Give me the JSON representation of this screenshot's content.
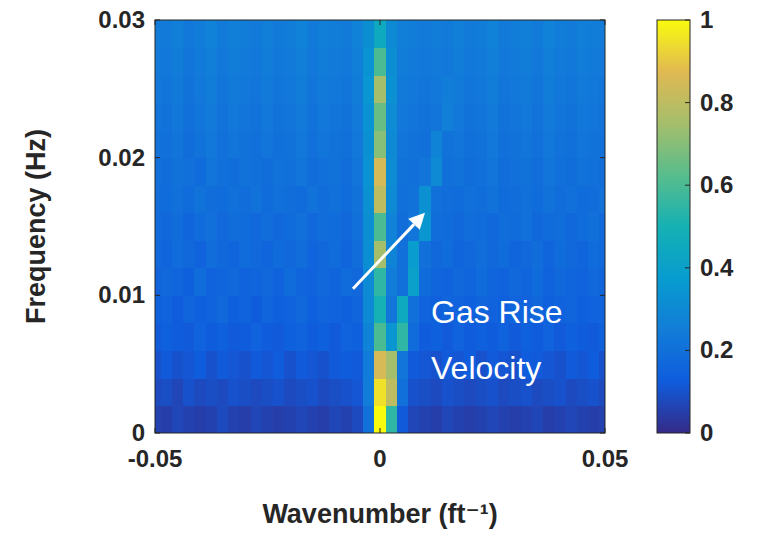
{
  "chart_data": {
    "type": "heatmap",
    "xlabel": "Wavenumber (ft⁻¹)",
    "ylabel": "Frequency (Hz)",
    "xlim": [
      -0.05,
      0.05
    ],
    "xticks": [
      -0.05,
      0,
      0.05
    ],
    "ylim": [
      0,
      0.03
    ],
    "yticks": [
      0,
      0.01,
      0.02,
      0.03
    ],
    "colorbar": {
      "range": [
        0,
        1
      ],
      "ticks": [
        0,
        0.2,
        0.4,
        0.6,
        0.8,
        1
      ]
    },
    "annotations": [
      {
        "text": "Gas Rise Velocity",
        "x": 0.01,
        "y": 0.016
      }
    ],
    "x": [
      -0.05,
      -0.0475,
      -0.045,
      -0.0425,
      -0.04,
      -0.0375,
      -0.035,
      -0.0325,
      -0.03,
      -0.0275,
      -0.025,
      -0.0225,
      -0.02,
      -0.0175,
      -0.015,
      -0.0125,
      -0.01,
      -0.0075,
      -0.005,
      -0.0025,
      0,
      0.0025,
      0.005,
      0.0075,
      0.01,
      0.0125,
      0.015,
      0.0175,
      0.02,
      0.0225,
      0.025,
      0.0275,
      0.03,
      0.0325,
      0.035,
      0.0375,
      0.04,
      0.0425,
      0.045,
      0.0475,
      0.05
    ],
    "y": [
      0.001,
      0.003,
      0.005,
      0.007,
      0.009,
      0.011,
      0.013,
      0.015,
      0.017,
      0.019,
      0.021,
      0.023,
      0.025,
      0.027,
      0.029
    ],
    "cells": [
      [
        0.06,
        0.05,
        0.07,
        0.06,
        0.05,
        0.06,
        0.08,
        0.06,
        0.05,
        0.07,
        0.06,
        0.05,
        0.06,
        0.07,
        0.06,
        0.05,
        0.07,
        0.06,
        0.08,
        0.2,
        1.0,
        0.55,
        0.12,
        0.07,
        0.06,
        0.05,
        0.07,
        0.06,
        0.05,
        0.06,
        0.07,
        0.06,
        0.05,
        0.06,
        0.07,
        0.05,
        0.06,
        0.07,
        0.06,
        0.05,
        0.06
      ],
      [
        0.08,
        0.09,
        0.07,
        0.1,
        0.08,
        0.09,
        0.08,
        0.1,
        0.09,
        0.08,
        0.09,
        0.1,
        0.08,
        0.09,
        0.1,
        0.08,
        0.09,
        0.1,
        0.11,
        0.25,
        0.95,
        0.8,
        0.2,
        0.1,
        0.09,
        0.08,
        0.1,
        0.09,
        0.08,
        0.09,
        0.1,
        0.08,
        0.09,
        0.1,
        0.08,
        0.09,
        0.1,
        0.08,
        0.09,
        0.1,
        0.08
      ],
      [
        0.1,
        0.12,
        0.1,
        0.11,
        0.13,
        0.1,
        0.12,
        0.11,
        0.1,
        0.12,
        0.11,
        0.13,
        0.1,
        0.12,
        0.11,
        0.1,
        0.12,
        0.13,
        0.12,
        0.25,
        0.85,
        0.75,
        0.22,
        0.12,
        0.11,
        0.1,
        0.12,
        0.11,
        0.13,
        0.1,
        0.12,
        0.11,
        0.1,
        0.13,
        0.12,
        0.11,
        0.1,
        0.12,
        0.11,
        0.13,
        0.1
      ],
      [
        0.12,
        0.14,
        0.13,
        0.12,
        0.15,
        0.13,
        0.14,
        0.12,
        0.13,
        0.15,
        0.13,
        0.12,
        0.14,
        0.15,
        0.13,
        0.14,
        0.12,
        0.15,
        0.14,
        0.28,
        0.6,
        0.35,
        0.55,
        0.18,
        0.13,
        0.14,
        0.12,
        0.15,
        0.13,
        0.14,
        0.13,
        0.15,
        0.12,
        0.14,
        0.13,
        0.15,
        0.12,
        0.14,
        0.13,
        0.12,
        0.14
      ],
      [
        0.14,
        0.15,
        0.13,
        0.16,
        0.14,
        0.15,
        0.17,
        0.14,
        0.15,
        0.13,
        0.16,
        0.14,
        0.15,
        0.17,
        0.14,
        0.16,
        0.15,
        0.14,
        0.16,
        0.3,
        0.5,
        0.22,
        0.45,
        0.2,
        0.15,
        0.14,
        0.16,
        0.15,
        0.14,
        0.16,
        0.15,
        0.14,
        0.16,
        0.15,
        0.17,
        0.14,
        0.15,
        0.16,
        0.14,
        0.15,
        0.16
      ],
      [
        0.15,
        0.17,
        0.16,
        0.14,
        0.18,
        0.15,
        0.16,
        0.17,
        0.15,
        0.16,
        0.17,
        0.15,
        0.18,
        0.16,
        0.15,
        0.17,
        0.16,
        0.18,
        0.17,
        0.3,
        0.55,
        0.25,
        0.2,
        0.4,
        0.18,
        0.16,
        0.15,
        0.17,
        0.16,
        0.18,
        0.16,
        0.15,
        0.17,
        0.16,
        0.18,
        0.15,
        0.17,
        0.16,
        0.15,
        0.17,
        0.16
      ],
      [
        0.17,
        0.16,
        0.18,
        0.17,
        0.15,
        0.19,
        0.17,
        0.16,
        0.18,
        0.17,
        0.16,
        0.18,
        0.17,
        0.19,
        0.16,
        0.17,
        0.18,
        0.16,
        0.19,
        0.32,
        0.75,
        0.28,
        0.2,
        0.38,
        0.2,
        0.17,
        0.18,
        0.16,
        0.17,
        0.19,
        0.17,
        0.18,
        0.16,
        0.17,
        0.19,
        0.16,
        0.18,
        0.17,
        0.16,
        0.18,
        0.17
      ],
      [
        0.18,
        0.17,
        0.19,
        0.16,
        0.18,
        0.2,
        0.17,
        0.19,
        0.18,
        0.17,
        0.19,
        0.17,
        0.18,
        0.2,
        0.17,
        0.19,
        0.18,
        0.17,
        0.2,
        0.32,
        0.6,
        0.27,
        0.19,
        0.22,
        0.35,
        0.19,
        0.18,
        0.17,
        0.19,
        0.18,
        0.17,
        0.19,
        0.18,
        0.2,
        0.17,
        0.18,
        0.19,
        0.17,
        0.18,
        0.2,
        0.17
      ],
      [
        0.19,
        0.18,
        0.2,
        0.18,
        0.21,
        0.19,
        0.18,
        0.2,
        0.19,
        0.21,
        0.18,
        0.2,
        0.19,
        0.18,
        0.21,
        0.19,
        0.2,
        0.18,
        0.21,
        0.33,
        0.8,
        0.3,
        0.2,
        0.21,
        0.33,
        0.2,
        0.19,
        0.18,
        0.2,
        0.19,
        0.21,
        0.18,
        0.19,
        0.2,
        0.18,
        0.21,
        0.19,
        0.2,
        0.18,
        0.19,
        0.21
      ],
      [
        0.2,
        0.19,
        0.21,
        0.2,
        0.18,
        0.22,
        0.2,
        0.19,
        0.21,
        0.2,
        0.19,
        0.21,
        0.2,
        0.22,
        0.19,
        0.2,
        0.21,
        0.19,
        0.22,
        0.34,
        0.85,
        0.31,
        0.21,
        0.2,
        0.22,
        0.3,
        0.2,
        0.21,
        0.19,
        0.2,
        0.22,
        0.19,
        0.2,
        0.21,
        0.19,
        0.22,
        0.2,
        0.19,
        0.21,
        0.2,
        0.19
      ],
      [
        0.21,
        0.2,
        0.22,
        0.19,
        0.21,
        0.23,
        0.2,
        0.22,
        0.21,
        0.2,
        0.22,
        0.2,
        0.21,
        0.23,
        0.2,
        0.22,
        0.21,
        0.2,
        0.23,
        0.33,
        0.7,
        0.3,
        0.22,
        0.21,
        0.2,
        0.28,
        0.21,
        0.22,
        0.2,
        0.21,
        0.23,
        0.2,
        0.21,
        0.22,
        0.2,
        0.23,
        0.21,
        0.2,
        0.22,
        0.21,
        0.2
      ],
      [
        0.22,
        0.21,
        0.23,
        0.2,
        0.22,
        0.24,
        0.21,
        0.23,
        0.22,
        0.21,
        0.23,
        0.21,
        0.22,
        0.24,
        0.21,
        0.23,
        0.22,
        0.21,
        0.24,
        0.34,
        0.65,
        0.31,
        0.23,
        0.22,
        0.21,
        0.22,
        0.26,
        0.23,
        0.21,
        0.22,
        0.24,
        0.21,
        0.22,
        0.23,
        0.21,
        0.24,
        0.22,
        0.21,
        0.23,
        0.22,
        0.21
      ],
      [
        0.23,
        0.22,
        0.24,
        0.21,
        0.23,
        0.25,
        0.22,
        0.24,
        0.23,
        0.22,
        0.24,
        0.22,
        0.23,
        0.25,
        0.22,
        0.24,
        0.23,
        0.22,
        0.25,
        0.35,
        0.75,
        0.33,
        0.24,
        0.23,
        0.22,
        0.23,
        0.25,
        0.24,
        0.22,
        0.23,
        0.25,
        0.22,
        0.23,
        0.24,
        0.22,
        0.25,
        0.23,
        0.22,
        0.24,
        0.23,
        0.22
      ],
      [
        0.24,
        0.23,
        0.25,
        0.22,
        0.24,
        0.26,
        0.23,
        0.25,
        0.24,
        0.23,
        0.25,
        0.23,
        0.24,
        0.26,
        0.23,
        0.25,
        0.24,
        0.23,
        0.26,
        0.34,
        0.6,
        0.32,
        0.25,
        0.24,
        0.23,
        0.24,
        0.23,
        0.25,
        0.23,
        0.24,
        0.26,
        0.23,
        0.24,
        0.25,
        0.23,
        0.26,
        0.24,
        0.23,
        0.25,
        0.24,
        0.23
      ],
      [
        0.25,
        0.24,
        0.26,
        0.23,
        0.25,
        0.27,
        0.24,
        0.26,
        0.25,
        0.24,
        0.26,
        0.24,
        0.25,
        0.27,
        0.24,
        0.26,
        0.25,
        0.24,
        0.27,
        0.32,
        0.45,
        0.3,
        0.26,
        0.25,
        0.24,
        0.25,
        0.24,
        0.26,
        0.24,
        0.25,
        0.27,
        0.24,
        0.25,
        0.26,
        0.24,
        0.27,
        0.25,
        0.24,
        0.26,
        0.25,
        0.24
      ]
    ]
  }
}
